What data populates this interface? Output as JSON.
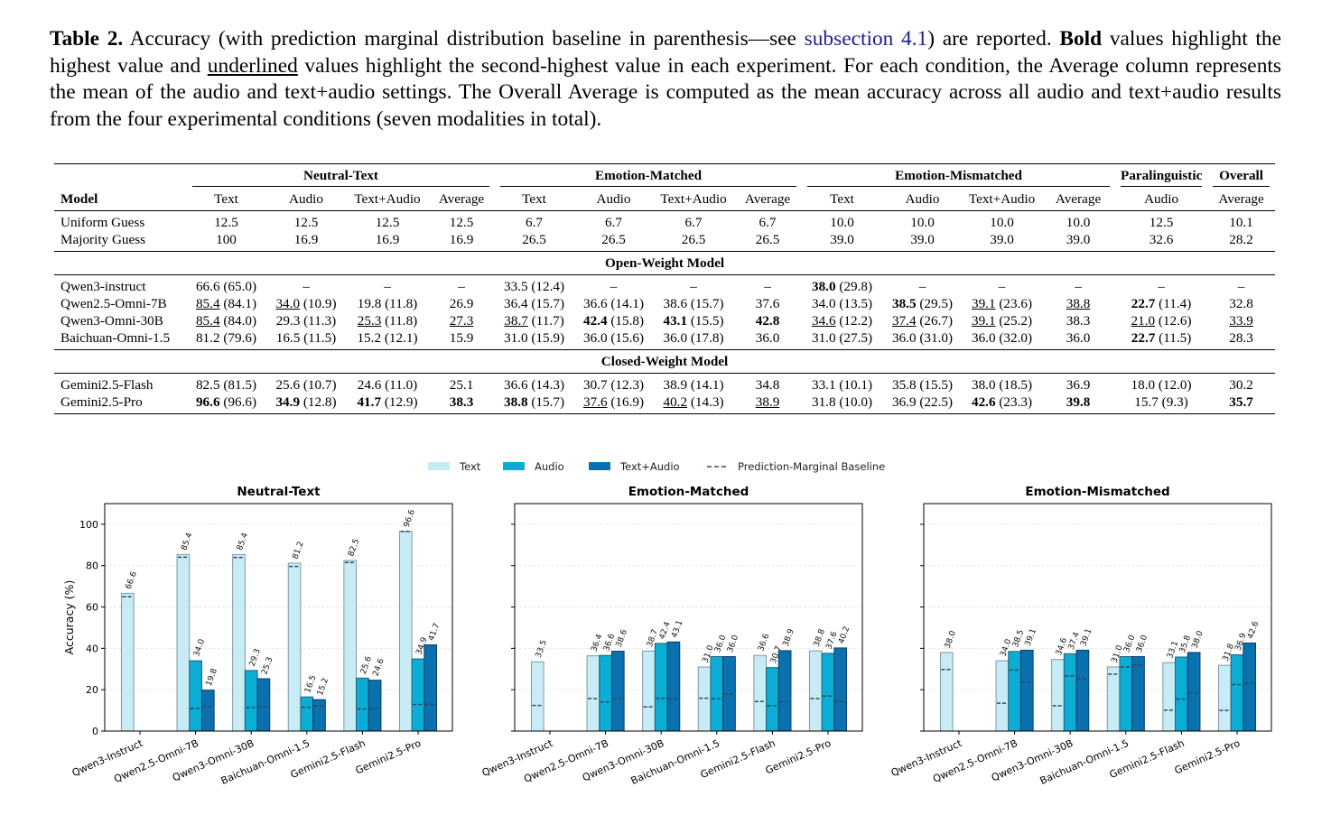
{
  "caption": {
    "label": "Table 2.",
    "p1": " Accuracy (with prediction marginal distribution baseline in parenthesis—see ",
    "link": "subsection 4.1",
    "p2": ") are reported. ",
    "bold_word": "Bold",
    "p3": " values highlight the highest value and ",
    "underlined_word": "underlined",
    "p4": " values highlight the second-highest value in each experiment. For each condition, the Average column represents the mean of the audio and text+audio settings. The Overall Average is computed as the mean accuracy across all audio and text+audio results from the four experimental conditions (seven modalities in total)."
  },
  "table": {
    "model_header": "Model",
    "groups": [
      {
        "label": "Neutral-Text",
        "span": 4
      },
      {
        "label": "Emotion-Matched",
        "span": 4
      },
      {
        "label": "Emotion-Mismatched",
        "span": 4
      },
      {
        "label": "Paralinguistic",
        "span": 1
      },
      {
        "label": "Overall",
        "span": 1
      }
    ],
    "columns": [
      "Text",
      "Audio",
      "Text+Audio",
      "Average",
      "Text",
      "Audio",
      "Text+Audio",
      "Average",
      "Text",
      "Audio",
      "Text+Audio",
      "Average",
      "Audio",
      "Average"
    ],
    "baseline_rows": [
      {
        "model": "Uniform Guess",
        "cells": [
          "12.5",
          "12.5",
          "12.5",
          "12.5",
          "6.7",
          "6.7",
          "6.7",
          "6.7",
          "10.0",
          "10.0",
          "10.0",
          "10.0",
          "12.5",
          "10.1"
        ]
      },
      {
        "model": "Majority Guess",
        "cells": [
          "100",
          "16.9",
          "16.9",
          "16.9",
          "26.5",
          "26.5",
          "26.5",
          "26.5",
          "39.0",
          "39.0",
          "39.0",
          "39.0",
          "32.6",
          "28.2"
        ]
      }
    ],
    "sections": [
      {
        "title": "Open-Weight Model",
        "rows": [
          {
            "model": "Qwen3-instruct",
            "cells": [
              {
                "v": "66.6",
                "p": "(65.0)"
              },
              {
                "v": "–"
              },
              {
                "v": "–"
              },
              {
                "v": "–"
              },
              {
                "v": "33.5",
                "p": "(12.4)"
              },
              {
                "v": "–"
              },
              {
                "v": "–"
              },
              {
                "v": "–"
              },
              {
                "v": "38.0",
                "p": "(29.8)",
                "s": "b"
              },
              {
                "v": "–"
              },
              {
                "v": "–"
              },
              {
                "v": "–"
              },
              {
                "v": "–"
              },
              {
                "v": "–"
              }
            ]
          },
          {
            "model": "Qwen2.5-Omni-7B",
            "cells": [
              {
                "v": "85.4",
                "p": "(84.1)",
                "s": "u"
              },
              {
                "v": "34.0",
                "p": "(10.9)",
                "s": "u"
              },
              {
                "v": "19.8",
                "p": "(11.8)"
              },
              {
                "v": "26.9"
              },
              {
                "v": "36.4",
                "p": "(15.7)"
              },
              {
                "v": "36.6",
                "p": "(14.1)"
              },
              {
                "v": "38.6",
                "p": "(15.7)"
              },
              {
                "v": "37.6"
              },
              {
                "v": "34.0",
                "p": "(13.5)"
              },
              {
                "v": "38.5",
                "p": "(29.5)",
                "s": "b"
              },
              {
                "v": "39.1",
                "p": "(23.6)",
                "s": "u"
              },
              {
                "v": "38.8",
                "s": "u"
              },
              {
                "v": "22.7",
                "p": "(11.4)",
                "s": "b"
              },
              {
                "v": "32.8"
              }
            ]
          },
          {
            "model": "Qwen3-Omni-30B",
            "cells": [
              {
                "v": "85.4",
                "p": "(84.0)",
                "s": "u"
              },
              {
                "v": "29.3",
                "p": "(11.3)"
              },
              {
                "v": "25.3",
                "p": "(11.8)",
                "s": "u"
              },
              {
                "v": "27.3",
                "s": "u"
              },
              {
                "v": "38.7",
                "p": "(11.7)",
                "s": "u"
              },
              {
                "v": "42.4",
                "p": "(15.8)",
                "s": "b"
              },
              {
                "v": "43.1",
                "p": "(15.5)",
                "s": "b"
              },
              {
                "v": "42.8",
                "s": "b"
              },
              {
                "v": "34.6",
                "p": "(12.2)",
                "s": "u"
              },
              {
                "v": "37.4",
                "p": "(26.7)",
                "s": "u"
              },
              {
                "v": "39.1",
                "p": "(25.2)",
                "s": "u"
              },
              {
                "v": "38.3"
              },
              {
                "v": "21.0",
                "p": "(12.6)",
                "s": "u"
              },
              {
                "v": "33.9",
                "s": "u"
              }
            ]
          },
          {
            "model": "Baichuan-Omni-1.5",
            "cells": [
              {
                "v": "81.2",
                "p": "(79.6)"
              },
              {
                "v": "16.5",
                "p": "(11.5)"
              },
              {
                "v": "15.2",
                "p": "(12.1)"
              },
              {
                "v": "15.9"
              },
              {
                "v": "31.0",
                "p": "(15.9)"
              },
              {
                "v": "36.0",
                "p": "(15.6)"
              },
              {
                "v": "36.0",
                "p": "(17.8)"
              },
              {
                "v": "36.0"
              },
              {
                "v": "31.0",
                "p": "(27.5)"
              },
              {
                "v": "36.0",
                "p": "(31.0)"
              },
              {
                "v": "36.0",
                "p": "(32.0)"
              },
              {
                "v": "36.0"
              },
              {
                "v": "22.7",
                "p": "(11.5)",
                "s": "b"
              },
              {
                "v": "28.3"
              }
            ]
          }
        ]
      },
      {
        "title": "Closed-Weight Model",
        "rows": [
          {
            "model": "Gemini2.5-Flash",
            "cells": [
              {
                "v": "82.5",
                "p": "(81.5)"
              },
              {
                "v": "25.6",
                "p": "(10.7)"
              },
              {
                "v": "24.6",
                "p": "(11.0)"
              },
              {
                "v": "25.1"
              },
              {
                "v": "36.6",
                "p": "(14.3)"
              },
              {
                "v": "30.7",
                "p": "(12.3)"
              },
              {
                "v": "38.9",
                "p": "(14.1)"
              },
              {
                "v": "34.8"
              },
              {
                "v": "33.1",
                "p": "(10.1)"
              },
              {
                "v": "35.8",
                "p": "(15.5)"
              },
              {
                "v": "38.0",
                "p": "(18.5)"
              },
              {
                "v": "36.9"
              },
              {
                "v": "18.0",
                "p": "(12.0)"
              },
              {
                "v": "30.2"
              }
            ]
          },
          {
            "model": "Gemini2.5-Pro",
            "cells": [
              {
                "v": "96.6",
                "p": "(96.6)",
                "s": "b"
              },
              {
                "v": "34.9",
                "p": "(12.8)",
                "s": "b"
              },
              {
                "v": "41.7",
                "p": "(12.9)",
                "s": "b"
              },
              {
                "v": "38.3",
                "s": "b"
              },
              {
                "v": "38.8",
                "p": "(15.7)",
                "s": "b"
              },
              {
                "v": "37.6",
                "p": "(16.9)",
                "s": "u"
              },
              {
                "v": "40.2",
                "p": "(14.3)",
                "s": "u"
              },
              {
                "v": "38.9",
                "s": "u"
              },
              {
                "v": "31.8",
                "p": "(10.0)"
              },
              {
                "v": "36.9",
                "p": "(22.5)"
              },
              {
                "v": "42.6",
                "p": "(23.3)",
                "s": "b"
              },
              {
                "v": "39.8",
                "s": "b"
              },
              {
                "v": "15.7",
                "p": "(9.3)"
              },
              {
                "v": "35.7",
                "s": "b"
              }
            ]
          }
        ]
      }
    ]
  },
  "legend": {
    "items": [
      {
        "label": "Text",
        "color": "#c8ecf5"
      },
      {
        "label": "Audio",
        "color": "#0badd4"
      },
      {
        "label": "Text+Audio",
        "color": "#0a70ae"
      },
      {
        "label": "Prediction-Marginal Baseline",
        "color": "#2d4b60"
      }
    ]
  },
  "chart_data": [
    {
      "type": "bar",
      "title": "Neutral-Text",
      "ylabel": "Accuracy (%)",
      "ylim": [
        0,
        110
      ],
      "yticks": [
        0,
        20,
        40,
        60,
        80,
        100
      ],
      "grid": true,
      "categories": [
        "Qwen3-Instruct",
        "Qwen2.5-Omni-7B",
        "Qwen3-Omni-30B",
        "Baichuan-Omni-1.5",
        "Gemini2.5-Flash",
        "Gemini2.5-Pro"
      ],
      "series": [
        {
          "name": "Text",
          "values": [
            66.6,
            85.4,
            85.4,
            81.2,
            82.5,
            96.6
          ],
          "baseline": [
            65.0,
            84.1,
            84.0,
            79.6,
            81.5,
            96.6
          ]
        },
        {
          "name": "Audio",
          "values": [
            null,
            34.0,
            29.3,
            16.5,
            25.6,
            34.9
          ],
          "baseline": [
            null,
            10.9,
            11.3,
            11.5,
            10.7,
            12.8
          ]
        },
        {
          "name": "Text+Audio",
          "values": [
            null,
            19.8,
            25.3,
            15.2,
            24.6,
            41.7
          ],
          "baseline": [
            null,
            11.8,
            11.8,
            12.1,
            11.0,
            12.9
          ]
        }
      ]
    },
    {
      "type": "bar",
      "title": "Emotion-Matched",
      "ylim": [
        0,
        110
      ],
      "grid": true,
      "categories": [
        "Qwen3-Instruct",
        "Qwen2.5-Omni-7B",
        "Qwen3-Omni-30B",
        "Baichuan-Omni-1.5",
        "Gemini2.5-Flash",
        "Gemini2.5-Pro"
      ],
      "series": [
        {
          "name": "Text",
          "values": [
            33.5,
            36.4,
            38.7,
            31.0,
            36.6,
            38.8
          ],
          "baseline": [
            12.4,
            15.7,
            11.7,
            15.9,
            14.3,
            15.7
          ]
        },
        {
          "name": "Audio",
          "values": [
            null,
            36.6,
            42.4,
            36.0,
            30.7,
            37.6
          ],
          "baseline": [
            null,
            14.1,
            15.8,
            15.6,
            12.3,
            16.9
          ]
        },
        {
          "name": "Text+Audio",
          "values": [
            null,
            38.6,
            43.1,
            36.0,
            38.9,
            40.2
          ],
          "baseline": [
            null,
            15.7,
            15.5,
            17.8,
            14.1,
            14.3
          ]
        }
      ]
    },
    {
      "type": "bar",
      "title": "Emotion-Mismatched",
      "ylim": [
        0,
        110
      ],
      "grid": true,
      "categories": [
        "Qwen3-Instruct",
        "Qwen2.5-Omni-7B",
        "Qwen3-Omni-30B",
        "Baichuan-Omni-1.5",
        "Gemini2.5-Flash",
        "Gemini2.5-Pro"
      ],
      "series": [
        {
          "name": "Text",
          "values": [
            38.0,
            34.0,
            34.6,
            31.0,
            33.1,
            31.8
          ],
          "baseline": [
            29.8,
            13.5,
            12.2,
            27.5,
            10.1,
            10.0
          ]
        },
        {
          "name": "Audio",
          "values": [
            null,
            38.5,
            37.4,
            36.0,
            35.8,
            36.9
          ],
          "baseline": [
            null,
            29.5,
            26.7,
            31.0,
            15.5,
            22.5
          ]
        },
        {
          "name": "Text+Audio",
          "values": [
            null,
            39.1,
            39.1,
            36.0,
            38.0,
            42.6
          ],
          "baseline": [
            null,
            23.6,
            25.2,
            32.0,
            18.5,
            23.3
          ]
        }
      ]
    }
  ]
}
